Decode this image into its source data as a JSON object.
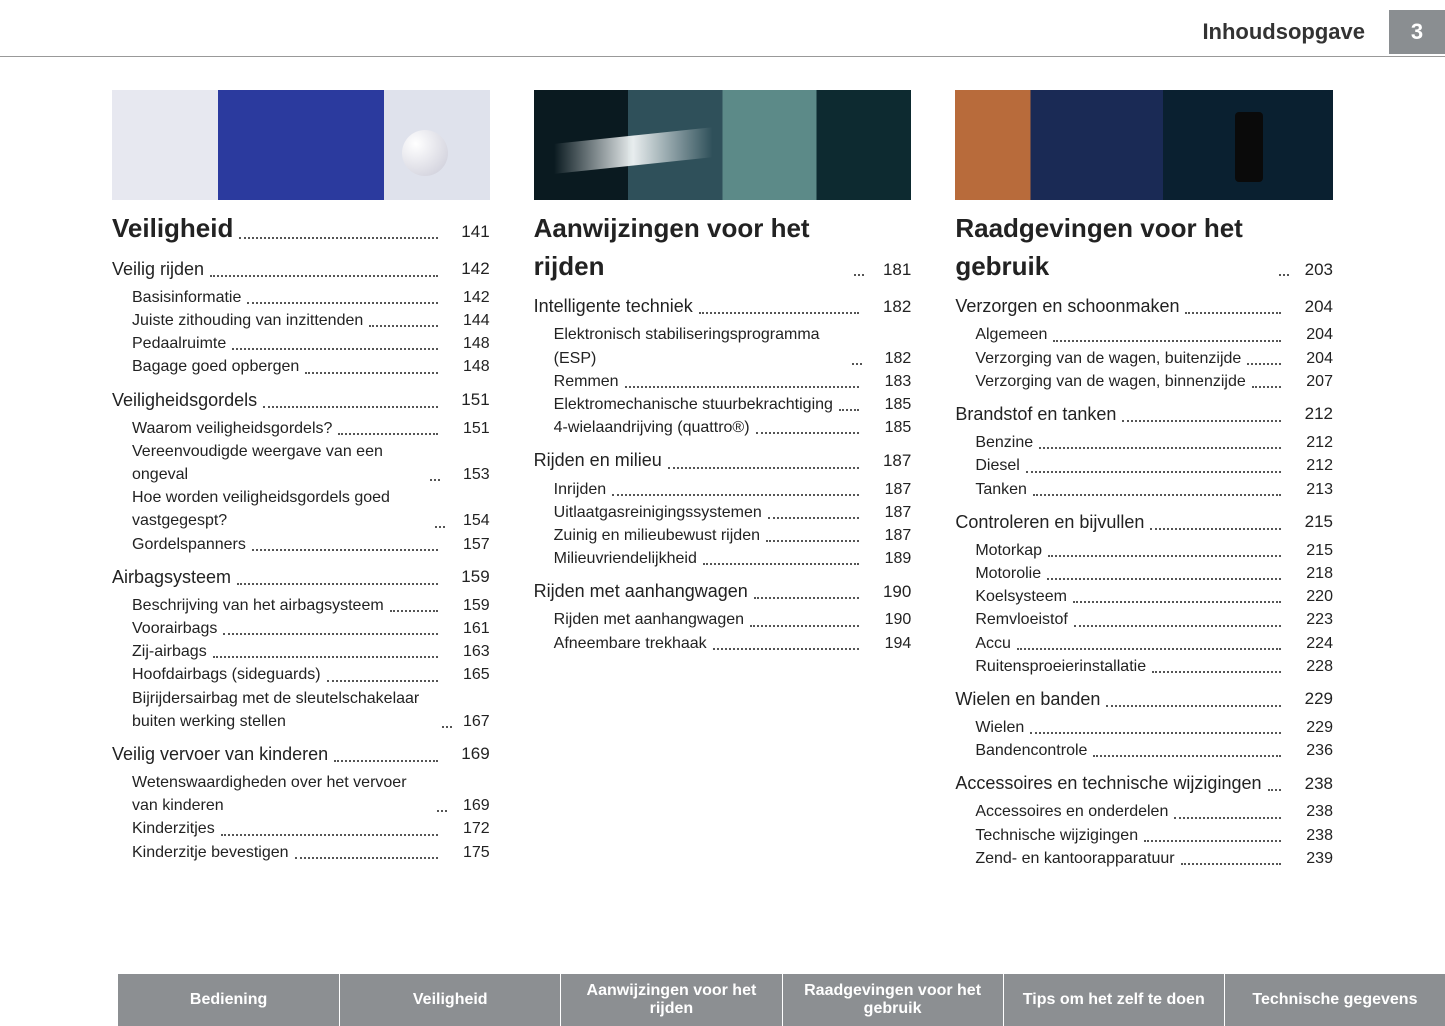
{
  "header": {
    "title": "Inhoudsopgave",
    "page_number": "3"
  },
  "columns": [
    {
      "hero": "hero1",
      "heading": {
        "label": "Veiligheid",
        "page": "141"
      },
      "groups": [
        {
          "section": {
            "label": "Veilig rijden",
            "page": "142"
          },
          "subs": [
            {
              "label": "Basisinformatie",
              "page": "142"
            },
            {
              "label": "Juiste zithouding van inzittenden",
              "page": "144"
            },
            {
              "label": "Pedaalruimte",
              "page": "148"
            },
            {
              "label": "Bagage goed opbergen",
              "page": "148"
            }
          ]
        },
        {
          "section": {
            "label": "Veiligheidsgordels",
            "page": "151"
          },
          "subs": [
            {
              "label": "Waarom veiligheidsgordels?",
              "page": "151"
            },
            {
              "label": "Vereenvoudigde weergave van een ongeval",
              "page": "153"
            },
            {
              "label": "Hoe worden veiligheidsgordels goed vastgegespt?",
              "page": "154"
            },
            {
              "label": "Gordelspanners",
              "page": "157"
            }
          ]
        },
        {
          "section": {
            "label": "Airbagsysteem",
            "page": "159"
          },
          "subs": [
            {
              "label": "Beschrijving van het airbagsysteem",
              "page": "159"
            },
            {
              "label": "Voorairbags",
              "page": "161"
            },
            {
              "label": "Zij-airbags",
              "page": "163"
            },
            {
              "label": "Hoofdairbags (sideguards)",
              "page": "165"
            },
            {
              "label": "Bijrijdersairbag met de sleutelschakelaar buiten werking stellen",
              "page": "167"
            }
          ]
        },
        {
          "section": {
            "label": "Veilig vervoer van kinderen",
            "page": "169"
          },
          "subs": [
            {
              "label": "Wetenswaardigheden over het vervoer van kinderen",
              "page": "169"
            },
            {
              "label": "Kinderzitjes",
              "page": "172"
            },
            {
              "label": "Kinderzitje bevestigen",
              "page": "175"
            }
          ]
        }
      ]
    },
    {
      "hero": "hero2",
      "heading": {
        "label": "Aanwijzingen voor het rijden",
        "page": "181"
      },
      "groups": [
        {
          "section": {
            "label": "Intelligente techniek",
            "page": "182"
          },
          "subs": [
            {
              "label": "Elektronisch stabiliseringsprogramma (ESP)",
              "page": "182"
            },
            {
              "label": "Remmen",
              "page": "183"
            },
            {
              "label": "Elektromechanische stuurbekrachtiging",
              "page": "185"
            },
            {
              "label": "4-wielaandrijving (quattro®)",
              "page": "185"
            }
          ]
        },
        {
          "section": {
            "label": "Rijden en milieu",
            "page": "187"
          },
          "subs": [
            {
              "label": "Inrijden",
              "page": "187"
            },
            {
              "label": "Uitlaatgasreinigingssystemen",
              "page": "187"
            },
            {
              "label": "Zuinig en milieubewust rijden",
              "page": "187"
            },
            {
              "label": "Milieuvriendelijkheid",
              "page": "189"
            }
          ]
        },
        {
          "section": {
            "label": "Rijden met aanhangwagen",
            "page": "190"
          },
          "subs": [
            {
              "label": "Rijden met aanhangwagen",
              "page": "190"
            },
            {
              "label": "Afneembare trekhaak",
              "page": "194"
            }
          ]
        }
      ]
    },
    {
      "hero": "hero3",
      "heading": {
        "label": "Raadgevingen voor het gebruik",
        "page": "203"
      },
      "groups": [
        {
          "section": {
            "label": "Verzorgen en schoonmaken",
            "page": "204"
          },
          "subs": [
            {
              "label": "Algemeen",
              "page": "204"
            },
            {
              "label": "Verzorging van de wagen, buitenzijde",
              "page": "204"
            },
            {
              "label": "Verzorging van de wagen, binnenzijde",
              "page": "207"
            }
          ]
        },
        {
          "section": {
            "label": "Brandstof en tanken",
            "page": "212"
          },
          "subs": [
            {
              "label": "Benzine",
              "page": "212"
            },
            {
              "label": "Diesel",
              "page": "212"
            },
            {
              "label": "Tanken",
              "page": "213"
            }
          ]
        },
        {
          "section": {
            "label": "Controleren en bijvullen",
            "page": "215"
          },
          "subs": [
            {
              "label": "Motorkap",
              "page": "215"
            },
            {
              "label": "Motorolie",
              "page": "218"
            },
            {
              "label": "Koelsysteem",
              "page": "220"
            },
            {
              "label": "Remvloeistof",
              "page": "223"
            },
            {
              "label": "Accu",
              "page": "224"
            },
            {
              "label": "Ruitensproeierinstallatie",
              "page": "228"
            }
          ]
        },
        {
          "section": {
            "label": "Wielen en banden",
            "page": "229"
          },
          "subs": [
            {
              "label": "Wielen",
              "page": "229"
            },
            {
              "label": "Bandencontrole",
              "page": "236"
            }
          ]
        },
        {
          "section": {
            "label": "Accessoires en technische wijzigingen",
            "page": "238"
          },
          "subs": [
            {
              "label": "Accessoires en onderdelen",
              "page": "238"
            },
            {
              "label": "Technische wijzigingen",
              "page": "238"
            },
            {
              "label": "Zend- en kantoorapparatuur",
              "page": "239"
            }
          ]
        }
      ]
    }
  ],
  "footer_tabs": [
    "Bediening",
    "Veiligheid",
    "Aanwijzingen voor het rijden",
    "Raadgevingen voor het gebruik",
    "Tips om het zelf te doen",
    "Technische gegevens"
  ]
}
